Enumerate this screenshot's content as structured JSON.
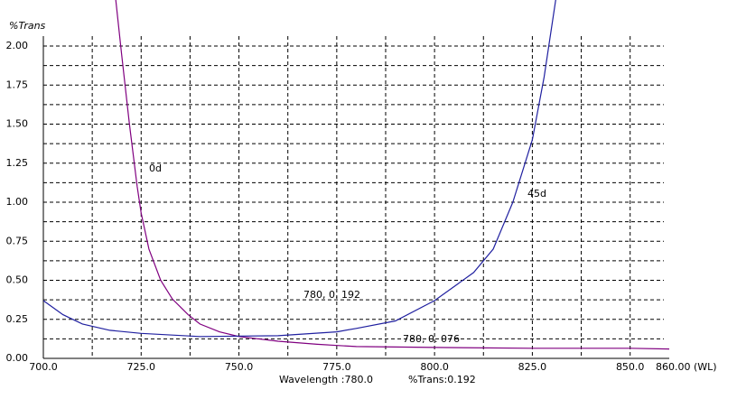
{
  "chart_data": {
    "type": "line",
    "y_label": "%Trans",
    "xlim": [
      700,
      860
    ],
    "ylim": [
      0,
      2
    ],
    "xticks": [
      {
        "value": 700,
        "label": "700.0"
      },
      {
        "value": 725,
        "label": "725.0"
      },
      {
        "value": 750,
        "label": "750.0"
      },
      {
        "value": 775,
        "label": "775.0"
      },
      {
        "value": 800,
        "label": "800.0"
      },
      {
        "value": 825,
        "label": "825.0"
      },
      {
        "value": 850,
        "label": "850.0"
      },
      {
        "value": 860,
        "label": "860.00 (WL)"
      }
    ],
    "xminorticks": [
      712.5,
      737.5,
      762.5,
      787.5,
      812.5,
      837.5
    ],
    "yticks": [
      {
        "value": 0,
        "label": "0.00"
      },
      {
        "value": 0.25,
        "label": "0.25"
      },
      {
        "value": 0.5,
        "label": "0.50"
      },
      {
        "value": 0.75,
        "label": "0.75"
      },
      {
        "value": 1,
        "label": "1.00"
      },
      {
        "value": 1.25,
        "label": "1.25"
      },
      {
        "value": 1.5,
        "label": "1.50"
      },
      {
        "value": 1.75,
        "label": "1.75"
      },
      {
        "value": 2,
        "label": "2.00"
      }
    ],
    "yminorticks": [
      0.125,
      0.375,
      0.625,
      0.875,
      1.125,
      1.375,
      1.625,
      1.875
    ],
    "grid": true,
    "series": [
      {
        "name": "0d",
        "color": "#800080",
        "x": [
          718.5,
          720,
          722,
          724,
          725,
          727,
          730,
          733,
          737,
          740,
          745,
          750,
          760,
          770,
          780,
          800,
          825,
          850,
          860
        ],
        "values": [
          2.3,
          1.95,
          1.5,
          1.1,
          0.93,
          0.7,
          0.5,
          0.38,
          0.28,
          0.22,
          0.17,
          0.14,
          0.11,
          0.09,
          0.076,
          0.07,
          0.065,
          0.065,
          0.06
        ]
      },
      {
        "name": "45d",
        "color": "#2020a0",
        "x": [
          700,
          705,
          710,
          717,
          725,
          740,
          760,
          775,
          780,
          790,
          800,
          810,
          815,
          820,
          825,
          828,
          831
        ],
        "values": [
          0.37,
          0.28,
          0.22,
          0.18,
          0.16,
          0.14,
          0.145,
          0.17,
          0.192,
          0.24,
          0.37,
          0.55,
          0.7,
          1.0,
          1.4,
          1.8,
          2.3
        ]
      }
    ],
    "annotations": [
      "780, 0. 192",
      "780, 0. 076"
    ],
    "status": [
      "Wavelength :780.0",
      "%Trans:0.192"
    ]
  }
}
